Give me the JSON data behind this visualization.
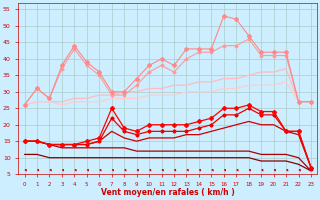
{
  "xlabel": "Vent moyen/en rafales ( km/h )",
  "background_color": "#cceeff",
  "grid_color": "#aacccc",
  "x": [
    0,
    1,
    2,
    3,
    4,
    5,
    6,
    7,
    8,
    9,
    10,
    11,
    12,
    13,
    14,
    15,
    16,
    17,
    18,
    19,
    20,
    21,
    22,
    23
  ],
  "lines": [
    {
      "y": [
        26,
        27,
        27,
        27,
        28,
        28,
        29,
        29,
        30,
        30,
        31,
        31,
        32,
        32,
        33,
        33,
        34,
        34,
        35,
        36,
        36,
        37,
        27,
        27
      ],
      "color": "#ffbbbb",
      "lw": 0.9,
      "marker": null,
      "ms": 0,
      "zorder": 2
    },
    {
      "y": [
        26,
        27,
        27,
        26,
        27,
        27,
        27,
        28,
        28,
        28,
        29,
        29,
        29,
        30,
        30,
        30,
        31,
        31,
        32,
        32,
        32,
        33,
        27,
        27
      ],
      "color": "#ffcccc",
      "lw": 0.9,
      "marker": null,
      "ms": 0,
      "zorder": 2
    },
    {
      "y": [
        26,
        31,
        28,
        38,
        44,
        39,
        36,
        30,
        30,
        34,
        38,
        40,
        38,
        43,
        43,
        43,
        53,
        52,
        47,
        42,
        42,
        42,
        27,
        27
      ],
      "color": "#ff8888",
      "lw": 0.8,
      "marker": "D",
      "ms": 2.0,
      "zorder": 4
    },
    {
      "y": [
        26,
        31,
        28,
        37,
        43,
        38,
        35,
        29,
        29,
        32,
        36,
        38,
        36,
        40,
        42,
        42,
        44,
        44,
        46,
        41,
        41,
        41,
        27,
        27
      ],
      "color": "#ff9999",
      "lw": 0.8,
      "marker": "D",
      "ms": 1.5,
      "zorder": 3
    },
    {
      "y": [
        15,
        15,
        14,
        14,
        14,
        15,
        16,
        25,
        19,
        18,
        20,
        20,
        20,
        20,
        21,
        22,
        25,
        25,
        26,
        24,
        24,
        18,
        18,
        7
      ],
      "color": "#ff0000",
      "lw": 0.9,
      "marker": "P",
      "ms": 2.5,
      "zorder": 6
    },
    {
      "y": [
        15,
        15,
        14,
        14,
        14,
        14,
        15,
        22,
        18,
        17,
        18,
        18,
        18,
        18,
        19,
        20,
        23,
        23,
        25,
        23,
        23,
        18,
        18,
        7
      ],
      "color": "#ee0000",
      "lw": 0.9,
      "marker": "P",
      "ms": 2.0,
      "zorder": 5
    },
    {
      "y": [
        15,
        15,
        14,
        14,
        14,
        14,
        15,
        18,
        16,
        15,
        16,
        16,
        16,
        17,
        17,
        18,
        19,
        20,
        21,
        20,
        20,
        18,
        17,
        7
      ],
      "color": "#cc0000",
      "lw": 0.9,
      "marker": null,
      "ms": 0,
      "zorder": 4
    },
    {
      "y": [
        15,
        15,
        14,
        13,
        13,
        13,
        13,
        13,
        13,
        12,
        12,
        12,
        12,
        12,
        12,
        12,
        12,
        12,
        12,
        11,
        11,
        11,
        10,
        6
      ],
      "color": "#aa0000",
      "lw": 0.9,
      "marker": null,
      "ms": 0,
      "zorder": 3
    },
    {
      "y": [
        11,
        11,
        10,
        10,
        10,
        10,
        10,
        10,
        10,
        10,
        10,
        10,
        10,
        10,
        10,
        10,
        10,
        10,
        10,
        9,
        9,
        9,
        8,
        6
      ],
      "color": "#880000",
      "lw": 0.9,
      "marker": null,
      "ms": 0,
      "zorder": 2
    }
  ],
  "ylim": [
    5,
    57
  ],
  "xlim": [
    -0.5,
    23.5
  ],
  "yticks": [
    5,
    10,
    15,
    20,
    25,
    30,
    35,
    40,
    45,
    50,
    55
  ],
  "xticks": [
    0,
    1,
    2,
    3,
    4,
    5,
    6,
    7,
    8,
    9,
    10,
    11,
    12,
    13,
    14,
    15,
    16,
    17,
    18,
    19,
    20,
    21,
    22,
    23
  ]
}
